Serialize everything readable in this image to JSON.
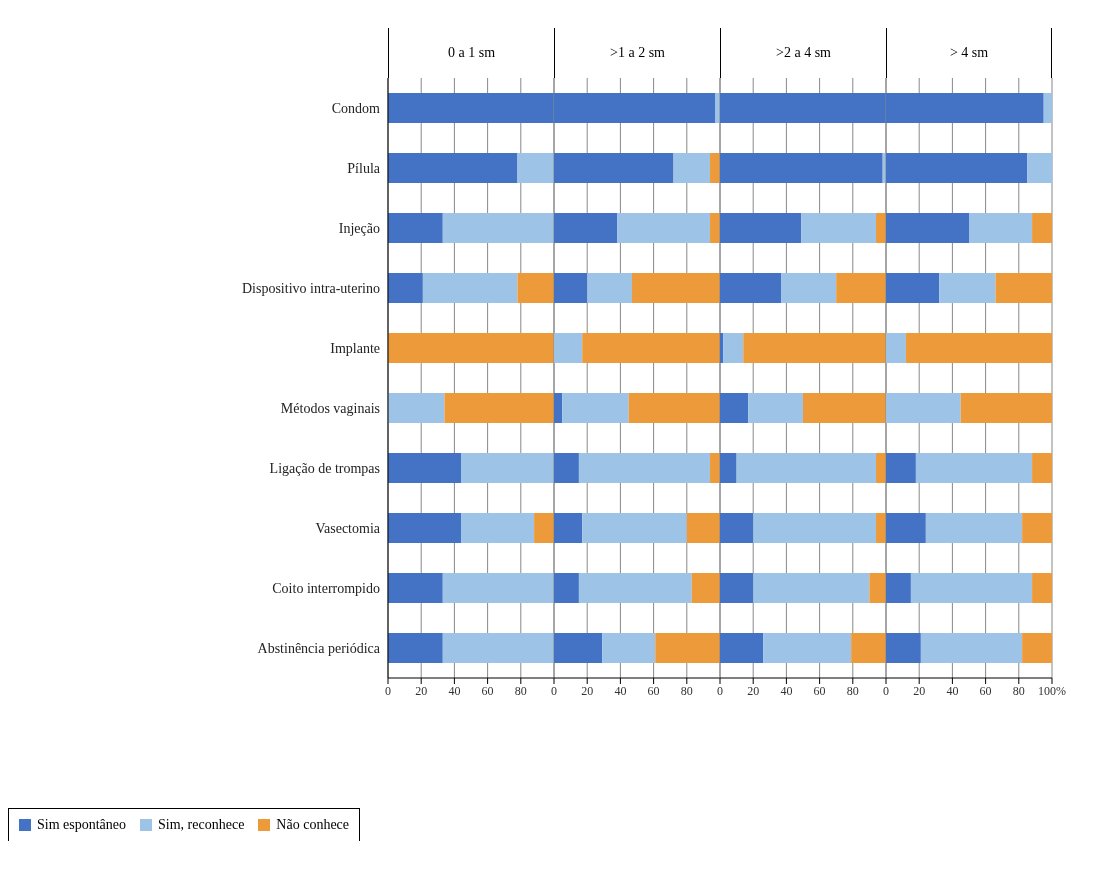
{
  "chart_data": [
    {
      "type": "bar",
      "title": "0 a 1 sm",
      "orientation": "horizontal",
      "stacked": true,
      "categories": [
        "Condom",
        "Pílula",
        "Injeção",
        "Dispositivo intra-uterino",
        "Implante",
        "Métodos vaginais",
        "Ligação de trompas",
        "Vasectomia",
        "Coito interrompido",
        "Abstinência periódica"
      ],
      "series": [
        {
          "name": "Sim espontâneo",
          "color": "#4472c4",
          "values": [
            100,
            78,
            33,
            21,
            0,
            0,
            44,
            44,
            33,
            33
          ]
        },
        {
          "name": "Sim, reconhece",
          "color": "#9dc3e6",
          "values": [
            0,
            22,
            67,
            57,
            0,
            34,
            56,
            44,
            67,
            67
          ]
        },
        {
          "name": "Não conhece",
          "color": "#ed9a3a",
          "values": [
            0,
            0,
            0,
            22,
            100,
            66,
            0,
            12,
            0,
            0
          ]
        }
      ],
      "xlim": [
        0,
        100
      ],
      "xticks": [
        0,
        20,
        40,
        60,
        80
      ],
      "grid": "x",
      "legend": "bottom left"
    },
    {
      "type": "bar",
      "title": ">1 a 2 sm",
      "orientation": "horizontal",
      "stacked": true,
      "tick_labels": "x",
      "categories": [
        null,
        null,
        null,
        null,
        null,
        null,
        null,
        null,
        null,
        null
      ],
      "series": [
        {
          "color": "#4472c4",
          "values": [
            97,
            72,
            38,
            20,
            0,
            5,
            15,
            17,
            15,
            29
          ]
        },
        {
          "color": "#9dc3e6",
          "values": [
            3,
            22,
            56,
            27,
            17,
            40,
            79,
            63,
            68,
            32
          ]
        },
        {
          "color": "#ed9a3a",
          "values": [
            0,
            6,
            6,
            53,
            83,
            55,
            6,
            20,
            17,
            39
          ]
        }
      ],
      "xlim": [
        0,
        100
      ],
      "xticks": [
        0,
        20,
        40,
        60,
        80
      ],
      "grid": "x"
    },
    {
      "type": "bar",
      "title": ">2 a 4 sm",
      "orientation": "horizontal",
      "stacked": true,
      "tick_labels": "x",
      "categories": [
        null,
        null,
        null,
        null,
        null,
        null,
        null,
        null,
        null,
        null
      ],
      "series": [
        {
          "color": "#4472c4",
          "values": [
            100,
            98,
            49,
            37,
            2,
            17,
            10,
            20,
            20,
            26
          ]
        },
        {
          "color": "#9dc3e6",
          "values": [
            0,
            2,
            45,
            33,
            12,
            33,
            84,
            74,
            70,
            53
          ]
        },
        {
          "color": "#ed9a3a",
          "values": [
            0,
            0,
            6,
            30,
            86,
            50,
            6,
            6,
            10,
            21
          ]
        }
      ],
      "xlim": [
        0,
        100
      ],
      "xticks": [
        0,
        20,
        40,
        60,
        80
      ],
      "grid": "x"
    },
    {
      "type": "bar",
      "title": "> 4 sm",
      "orientation": "horizontal",
      "stacked": true,
      "tick_labels": "x",
      "categories": [
        null,
        null,
        null,
        null,
        null,
        null,
        null,
        null,
        null,
        null
      ],
      "series": [
        {
          "color": "#4472c4",
          "values": [
            95,
            85,
            50,
            32,
            0,
            0,
            18,
            24,
            15,
            21
          ]
        },
        {
          "color": "#9dc3e6",
          "values": [
            5,
            15,
            38,
            34,
            12,
            45,
            70,
            58,
            73,
            61
          ]
        },
        {
          "color": "#ed9a3a",
          "values": [
            0,
            0,
            12,
            34,
            88,
            55,
            12,
            18,
            12,
            18
          ]
        }
      ],
      "xlim": [
        0,
        100
      ],
      "xticks": [
        0,
        20,
        40,
        60,
        80,
        {
          "value": 100,
          "label": "100%"
        }
      ],
      "grid": "x"
    }
  ]
}
